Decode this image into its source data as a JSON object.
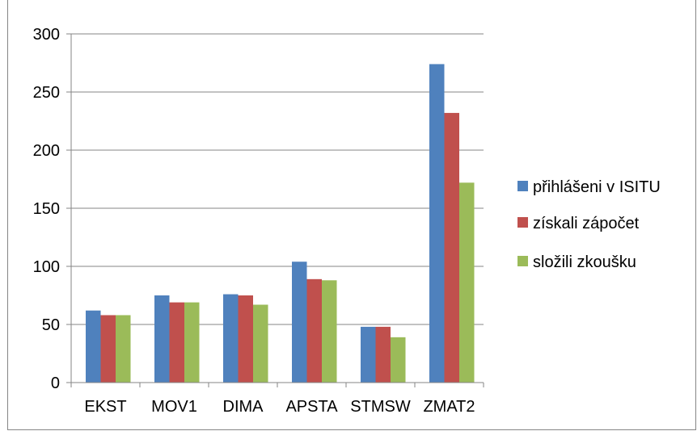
{
  "chart_data": {
    "type": "bar",
    "categories": [
      "EKST",
      "MOV1",
      "DIMA",
      "APSTA",
      "STMSW",
      "ZMAT2"
    ],
    "series": [
      {
        "name": "přihlášeni v ISITU",
        "color": "#4F81BD",
        "values": [
          62,
          75,
          76,
          104,
          48,
          274
        ]
      },
      {
        "name": "získali zápočet",
        "color": "#C0504D",
        "values": [
          58,
          69,
          75,
          89,
          48,
          232
        ]
      },
      {
        "name": "složili zkoušku",
        "color": "#9BBB59",
        "values": [
          58,
          69,
          67,
          88,
          39,
          172
        ]
      }
    ],
    "ylim": [
      0,
      300
    ],
    "yticks": [
      "0",
      "50",
      "100",
      "150",
      "200",
      "250",
      "300"
    ],
    "grid": true,
    "legend": "right"
  }
}
